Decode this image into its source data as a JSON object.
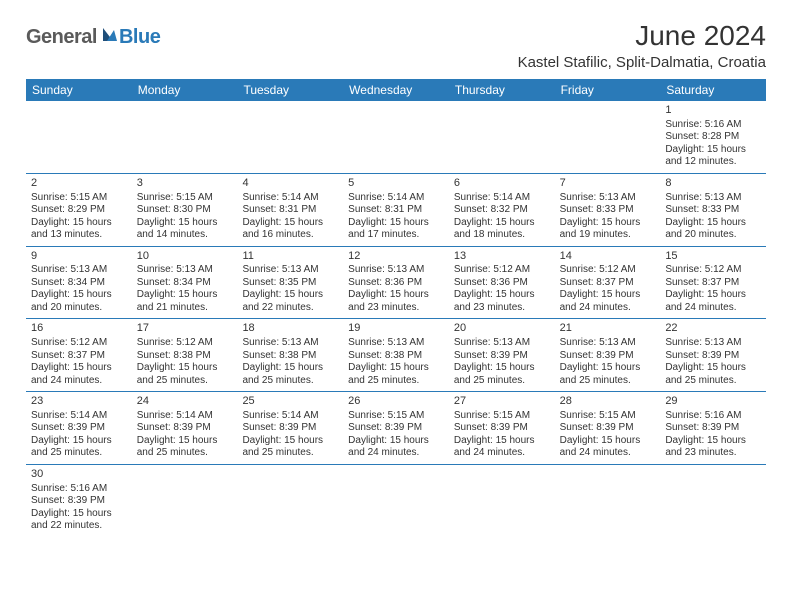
{
  "logo": {
    "general": "General",
    "blue": "Blue"
  },
  "title": "June 2024",
  "location": "Kastel Stafilic, Split-Dalmatia, Croatia",
  "colors": {
    "header_bg": "#2a7ab8",
    "header_text": "#ffffff",
    "text": "#333333",
    "row_border": "#2a7ab8",
    "background": "#ffffff"
  },
  "daynames": [
    "Sunday",
    "Monday",
    "Tuesday",
    "Wednesday",
    "Thursday",
    "Friday",
    "Saturday"
  ],
  "labels": {
    "sunrise_prefix": "Sunrise: ",
    "sunset_prefix": "Sunset: ",
    "daylight_prefix": "Daylight: ",
    "hours_word": " hours",
    "and_word": "and ",
    "minutes_word": " minutes."
  },
  "weeks": [
    [
      null,
      null,
      null,
      null,
      null,
      null,
      {
        "n": "1",
        "sunrise": "5:16 AM",
        "sunset": "8:28 PM",
        "dl_h": "15",
        "dl_m": "12"
      }
    ],
    [
      {
        "n": "2",
        "sunrise": "5:15 AM",
        "sunset": "8:29 PM",
        "dl_h": "15",
        "dl_m": "13"
      },
      {
        "n": "3",
        "sunrise": "5:15 AM",
        "sunset": "8:30 PM",
        "dl_h": "15",
        "dl_m": "14"
      },
      {
        "n": "4",
        "sunrise": "5:14 AM",
        "sunset": "8:31 PM",
        "dl_h": "15",
        "dl_m": "16"
      },
      {
        "n": "5",
        "sunrise": "5:14 AM",
        "sunset": "8:31 PM",
        "dl_h": "15",
        "dl_m": "17"
      },
      {
        "n": "6",
        "sunrise": "5:14 AM",
        "sunset": "8:32 PM",
        "dl_h": "15",
        "dl_m": "18"
      },
      {
        "n": "7",
        "sunrise": "5:13 AM",
        "sunset": "8:33 PM",
        "dl_h": "15",
        "dl_m": "19"
      },
      {
        "n": "8",
        "sunrise": "5:13 AM",
        "sunset": "8:33 PM",
        "dl_h": "15",
        "dl_m": "20"
      }
    ],
    [
      {
        "n": "9",
        "sunrise": "5:13 AM",
        "sunset": "8:34 PM",
        "dl_h": "15",
        "dl_m": "20"
      },
      {
        "n": "10",
        "sunrise": "5:13 AM",
        "sunset": "8:34 PM",
        "dl_h": "15",
        "dl_m": "21"
      },
      {
        "n": "11",
        "sunrise": "5:13 AM",
        "sunset": "8:35 PM",
        "dl_h": "15",
        "dl_m": "22"
      },
      {
        "n": "12",
        "sunrise": "5:13 AM",
        "sunset": "8:36 PM",
        "dl_h": "15",
        "dl_m": "23"
      },
      {
        "n": "13",
        "sunrise": "5:12 AM",
        "sunset": "8:36 PM",
        "dl_h": "15",
        "dl_m": "23"
      },
      {
        "n": "14",
        "sunrise": "5:12 AM",
        "sunset": "8:37 PM",
        "dl_h": "15",
        "dl_m": "24"
      },
      {
        "n": "15",
        "sunrise": "5:12 AM",
        "sunset": "8:37 PM",
        "dl_h": "15",
        "dl_m": "24"
      }
    ],
    [
      {
        "n": "16",
        "sunrise": "5:12 AM",
        "sunset": "8:37 PM",
        "dl_h": "15",
        "dl_m": "24"
      },
      {
        "n": "17",
        "sunrise": "5:12 AM",
        "sunset": "8:38 PM",
        "dl_h": "15",
        "dl_m": "25"
      },
      {
        "n": "18",
        "sunrise": "5:13 AM",
        "sunset": "8:38 PM",
        "dl_h": "15",
        "dl_m": "25"
      },
      {
        "n": "19",
        "sunrise": "5:13 AM",
        "sunset": "8:38 PM",
        "dl_h": "15",
        "dl_m": "25"
      },
      {
        "n": "20",
        "sunrise": "5:13 AM",
        "sunset": "8:39 PM",
        "dl_h": "15",
        "dl_m": "25"
      },
      {
        "n": "21",
        "sunrise": "5:13 AM",
        "sunset": "8:39 PM",
        "dl_h": "15",
        "dl_m": "25"
      },
      {
        "n": "22",
        "sunrise": "5:13 AM",
        "sunset": "8:39 PM",
        "dl_h": "15",
        "dl_m": "25"
      }
    ],
    [
      {
        "n": "23",
        "sunrise": "5:14 AM",
        "sunset": "8:39 PM",
        "dl_h": "15",
        "dl_m": "25"
      },
      {
        "n": "24",
        "sunrise": "5:14 AM",
        "sunset": "8:39 PM",
        "dl_h": "15",
        "dl_m": "25"
      },
      {
        "n": "25",
        "sunrise": "5:14 AM",
        "sunset": "8:39 PM",
        "dl_h": "15",
        "dl_m": "25"
      },
      {
        "n": "26",
        "sunrise": "5:15 AM",
        "sunset": "8:39 PM",
        "dl_h": "15",
        "dl_m": "24"
      },
      {
        "n": "27",
        "sunrise": "5:15 AM",
        "sunset": "8:39 PM",
        "dl_h": "15",
        "dl_m": "24"
      },
      {
        "n": "28",
        "sunrise": "5:15 AM",
        "sunset": "8:39 PM",
        "dl_h": "15",
        "dl_m": "24"
      },
      {
        "n": "29",
        "sunrise": "5:16 AM",
        "sunset": "8:39 PM",
        "dl_h": "15",
        "dl_m": "23"
      }
    ],
    [
      {
        "n": "30",
        "sunrise": "5:16 AM",
        "sunset": "8:39 PM",
        "dl_h": "15",
        "dl_m": "22"
      },
      null,
      null,
      null,
      null,
      null,
      null
    ]
  ]
}
